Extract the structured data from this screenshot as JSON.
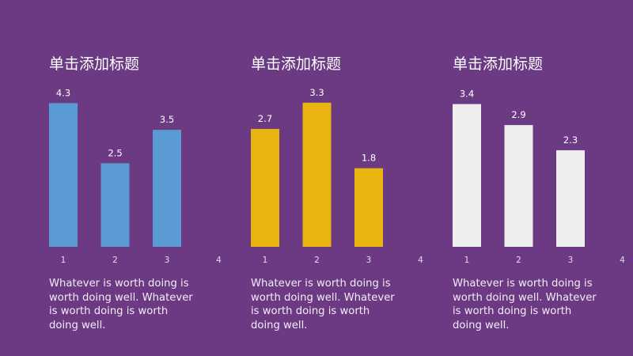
{
  "charts": [
    {
      "title": "单击添加标题",
      "description": "Whatever is worth doing is worth doing well. Whatever is worth doing is worth doing well.",
      "color": "#5b9bd5"
    },
    {
      "title": "单击添加标题",
      "description": "Whatever is worth doing is worth doing well. Whatever is worth doing is worth doing well.",
      "color": "#e9b40f"
    },
    {
      "title": "单击添加标题",
      "description": "Whatever is worth doing is worth doing well. Whatever is worth doing is worth doing well.",
      "color": "#eeeeee"
    }
  ],
  "chart_data": [
    {
      "type": "bar",
      "categories": [
        "1",
        "2",
        "3",
        "4"
      ],
      "values": [
        4.3,
        2.5,
        3.5,
        null
      ],
      "data_labels": [
        "4.3",
        "2.5",
        "3.5",
        ""
      ],
      "ylim": [
        0,
        4.9
      ],
      "grid": false
    },
    {
      "type": "bar",
      "categories": [
        "1",
        "2",
        "3",
        "4"
      ],
      "values": [
        2.7,
        3.3,
        1.8,
        null
      ],
      "data_labels": [
        "2.7",
        "3.3",
        "1.8",
        ""
      ],
      "ylim": [
        0,
        3.75
      ],
      "grid": false
    },
    {
      "type": "bar",
      "categories": [
        "1",
        "2",
        "3",
        "4"
      ],
      "values": [
        3.4,
        2.9,
        2.3,
        null
      ],
      "data_labels": [
        "3.4",
        "2.9",
        "2.3",
        ""
      ],
      "ylim": [
        0,
        3.9
      ],
      "grid": false
    }
  ]
}
